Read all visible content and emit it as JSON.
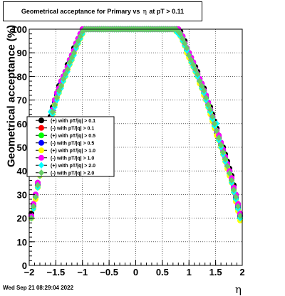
{
  "title": {
    "part1": "Geometrical acceptance for Primary vs",
    "eta": "η",
    "part2": "at pT > 0.11"
  },
  "timestamp": "Wed Sep 21 08:29:04 2022",
  "chart_data": {
    "type": "scatter",
    "title": "Geometrical acceptance for Primary vs η at pT > 0.11",
    "xlabel": "η",
    "ylabel": "Geometrical acceptance (%)",
    "xlim": [
      -2,
      2
    ],
    "ylim": [
      0,
      100
    ],
    "grid": true,
    "legend_position": "left-middle",
    "x_ticks": [
      {
        "v": -2,
        "label": "−2"
      },
      {
        "v": -1.5,
        "label": "−1.5"
      },
      {
        "v": -1,
        "label": "−1"
      },
      {
        "v": -0.5,
        "label": "−0.5"
      },
      {
        "v": 0,
        "label": "0"
      },
      {
        "v": 0.5,
        "label": "0.5"
      },
      {
        "v": 1,
        "label": "1"
      },
      {
        "v": 1.5,
        "label": "1.5"
      },
      {
        "v": 2,
        "label": "2"
      }
    ],
    "y_ticks": [
      {
        "v": 0,
        "label": "0"
      },
      {
        "v": 10,
        "label": "10"
      },
      {
        "v": 20,
        "label": "20"
      },
      {
        "v": 30,
        "label": "30"
      },
      {
        "v": 40,
        "label": "40"
      },
      {
        "v": 50,
        "label": "50"
      },
      {
        "v": 60,
        "label": "60"
      },
      {
        "v": 70,
        "label": "70"
      },
      {
        "v": 80,
        "label": "80"
      },
      {
        "v": 90,
        "label": "90"
      },
      {
        "v": 100,
        "label": "100"
      }
    ],
    "x": [
      -1.96,
      -1.92,
      -1.88,
      -1.84,
      -1.8,
      -1.76,
      -1.72,
      -1.68,
      -1.64,
      -1.6,
      -1.56,
      -1.52,
      -1.48,
      -1.44,
      -1.4,
      -1.36,
      -1.32,
      -1.28,
      -1.24,
      -1.2,
      -1.16,
      -1.12,
      -1.08,
      -1.04,
      -1.0,
      -0.96,
      -0.92,
      -0.88,
      -0.84,
      -0.8,
      -0.76,
      -0.72,
      -0.68,
      -0.64,
      -0.6,
      -0.56,
      -0.52,
      -0.48,
      -0.44,
      -0.4,
      -0.36,
      -0.32,
      -0.28,
      -0.24,
      -0.2,
      -0.16,
      -0.12,
      -0.08,
      -0.04,
      0.0,
      0.04,
      0.08,
      0.12,
      0.16,
      0.2,
      0.24,
      0.28,
      0.32,
      0.36,
      0.4,
      0.44,
      0.48,
      0.52,
      0.56,
      0.6,
      0.64,
      0.68,
      0.72,
      0.76,
      0.8,
      0.84,
      0.88,
      0.92,
      0.96,
      1.0,
      1.04,
      1.08,
      1.12,
      1.16,
      1.2,
      1.24,
      1.28,
      1.32,
      1.36,
      1.4,
      1.44,
      1.48,
      1.52,
      1.56,
      1.6,
      1.64,
      1.68,
      1.72,
      1.76,
      1.8,
      1.84,
      1.88,
      1.92,
      1.96
    ],
    "series": [
      {
        "name": "(+) with pT/|q| > 0.1",
        "color": "#000000",
        "marker": "circle",
        "values": [
          22,
          26,
          30,
          35,
          40,
          44,
          48,
          53,
          58,
          63,
          67,
          70,
          73,
          76,
          78,
          80,
          82,
          85,
          87,
          89,
          92,
          94,
          96,
          98,
          100,
          100,
          100,
          100,
          100,
          100,
          100,
          100,
          100,
          100,
          100,
          100,
          100,
          100,
          100,
          100,
          100,
          100,
          100,
          100,
          100,
          100,
          100,
          100,
          100,
          100,
          100,
          100,
          100,
          100,
          100,
          100,
          100,
          100,
          100,
          100,
          100,
          100,
          100,
          100,
          100,
          100,
          100,
          100,
          100,
          100,
          99,
          97,
          95,
          92,
          90,
          88,
          86,
          84,
          82,
          79,
          77,
          75,
          72,
          69,
          67,
          64,
          61,
          58,
          55,
          52,
          50,
          47,
          44,
          41,
          38,
          34,
          30,
          26,
          22
        ]
      },
      {
        "name": "(-) with pT/|q| > 0.1",
        "color": "#ff0000",
        "marker": "circle",
        "values": [
          21,
          25,
          29,
          34,
          39,
          43,
          47,
          52,
          57,
          62,
          66,
          69,
          72,
          75,
          77,
          79,
          81,
          84,
          86,
          88,
          91,
          93,
          95,
          97,
          99,
          100,
          100,
          100,
          100,
          100,
          100,
          100,
          100,
          100,
          100,
          100,
          100,
          100,
          100,
          100,
          100,
          100,
          100,
          100,
          100,
          100,
          100,
          100,
          100,
          100,
          100,
          100,
          100,
          100,
          100,
          100,
          100,
          100,
          100,
          100,
          100,
          100,
          100,
          100,
          100,
          100,
          100,
          100,
          100,
          99,
          98,
          96,
          94,
          91,
          89,
          87,
          85,
          83,
          81,
          78,
          76,
          74,
          71,
          68,
          66,
          63,
          60,
          57,
          54,
          51,
          49,
          46,
          43,
          40,
          37,
          33,
          29,
          25,
          21
        ]
      },
      {
        "name": "(+) with pT/|q| > 0.5",
        "color": "#00ff00",
        "marker": "circle",
        "values": [
          20,
          25,
          29,
          33,
          38,
          43,
          47,
          51,
          56,
          61,
          65,
          68,
          71,
          74,
          76,
          79,
          81,
          83,
          86,
          88,
          90,
          92,
          95,
          97,
          99,
          100,
          100,
          100,
          100,
          100,
          100,
          100,
          100,
          100,
          100,
          100,
          100,
          100,
          100,
          100,
          100,
          100,
          100,
          100,
          100,
          100,
          100,
          100,
          100,
          100,
          100,
          100,
          100,
          100,
          100,
          100,
          100,
          100,
          100,
          100,
          100,
          100,
          100,
          100,
          100,
          100,
          100,
          100,
          100,
          99,
          98,
          96,
          93,
          91,
          89,
          87,
          85,
          83,
          80,
          78,
          75,
          73,
          70,
          68,
          65,
          62,
          59,
          56,
          53,
          51,
          48,
          45,
          42,
          39,
          36,
          32,
          28,
          24,
          20
        ]
      },
      {
        "name": "(-) with pT/|q| > 0.5",
        "color": "#0000ff",
        "marker": "circle",
        "values": [
          21,
          25,
          30,
          34,
          39,
          43,
          48,
          52,
          57,
          62,
          66,
          69,
          72,
          75,
          77,
          80,
          82,
          84,
          86,
          89,
          91,
          93,
          96,
          98,
          99,
          100,
          100,
          100,
          100,
          100,
          100,
          100,
          100,
          100,
          100,
          100,
          100,
          100,
          100,
          100,
          100,
          100,
          100,
          100,
          100,
          100,
          100,
          100,
          100,
          100,
          100,
          100,
          100,
          100,
          100,
          100,
          100,
          100,
          100,
          100,
          100,
          100,
          100,
          100,
          100,
          100,
          100,
          100,
          100,
          99,
          98,
          96,
          94,
          92,
          89,
          87,
          85,
          83,
          81,
          79,
          76,
          74,
          71,
          69,
          66,
          63,
          60,
          57,
          54,
          52,
          49,
          46,
          43,
          40,
          37,
          33,
          29,
          25,
          21
        ]
      },
      {
        "name": "(+) with pT/|q| > 1.0",
        "color": "#ffff00",
        "marker": "circle",
        "values": [
          20,
          24,
          28,
          33,
          38,
          42,
          46,
          51,
          56,
          60,
          64,
          68,
          71,
          73,
          76,
          78,
          80,
          83,
          85,
          87,
          90,
          92,
          94,
          96,
          98,
          100,
          100,
          100,
          100,
          100,
          100,
          100,
          100,
          100,
          100,
          100,
          100,
          100,
          100,
          100,
          100,
          100,
          100,
          100,
          100,
          100,
          100,
          100,
          100,
          100,
          100,
          100,
          100,
          100,
          100,
          100,
          100,
          100,
          100,
          100,
          100,
          100,
          100,
          100,
          100,
          100,
          100,
          100,
          99,
          99,
          97,
          95,
          93,
          90,
          88,
          86,
          84,
          82,
          80,
          77,
          75,
          72,
          70,
          67,
          64,
          61,
          58,
          55,
          53,
          50,
          47,
          44,
          41,
          38,
          35,
          31,
          27,
          23,
          19
        ]
      },
      {
        "name": "(-) with pT/|q| > 1.0",
        "color": "#ff00ff",
        "marker": "circle",
        "values": [
          21,
          26,
          30,
          35,
          39,
          44,
          48,
          52,
          57,
          62,
          66,
          70,
          73,
          75,
          78,
          80,
          82,
          84,
          87,
          89,
          91,
          94,
          96,
          98,
          100,
          100,
          100,
          100,
          100,
          100,
          100,
          100,
          100,
          100,
          100,
          100,
          100,
          100,
          100,
          100,
          100,
          100,
          100,
          100,
          100,
          100,
          100,
          100,
          100,
          100,
          100,
          100,
          100,
          100,
          100,
          100,
          100,
          100,
          100,
          100,
          100,
          100,
          100,
          100,
          100,
          100,
          100,
          100,
          100,
          100,
          98,
          97,
          94,
          92,
          90,
          88,
          86,
          83,
          81,
          79,
          77,
          74,
          72,
          69,
          66,
          63,
          60,
          57,
          55,
          52,
          49,
          46,
          43,
          40,
          37,
          33,
          30,
          26,
          22
        ]
      },
      {
        "name": "(+) with pT/|q| > 2.0",
        "color": "#00ffff",
        "marker": "diamond",
        "values": [
          20,
          24,
          29,
          33,
          38,
          42,
          47,
          51,
          56,
          65,
          64,
          67,
          70,
          73,
          75,
          78,
          80,
          82,
          85,
          87,
          89,
          92,
          94,
          96,
          98,
          100,
          100,
          100,
          100,
          100,
          100,
          100,
          100,
          100,
          100,
          100,
          100,
          100,
          100,
          100,
          100,
          100,
          100,
          100,
          100,
          100,
          100,
          100,
          100,
          100,
          100,
          100,
          100,
          100,
          100,
          100,
          100,
          100,
          100,
          100,
          100,
          100,
          100,
          100,
          100,
          100,
          100,
          100,
          99,
          98,
          97,
          95,
          93,
          91,
          89,
          86,
          84,
          82,
          80,
          78,
          75,
          73,
          70,
          67,
          65,
          62,
          59,
          60,
          53,
          50,
          47,
          44,
          42,
          39,
          35,
          31,
          28,
          24,
          20
        ]
      },
      {
        "name": "(-) with pT/|q| > 2.0",
        "color": "#66cc66",
        "marker": "diamond",
        "values": [
          20,
          25,
          29,
          34,
          38,
          43,
          47,
          52,
          57,
          61,
          65,
          68,
          71,
          74,
          76,
          79,
          81,
          83,
          86,
          88,
          90,
          93,
          95,
          97,
          99,
          100,
          100,
          100,
          100,
          100,
          100,
          100,
          100,
          100,
          100,
          100,
          100,
          100,
          100,
          100,
          100,
          100,
          100,
          100,
          100,
          100,
          100,
          100,
          100,
          100,
          100,
          100,
          100,
          100,
          100,
          100,
          100,
          100,
          100,
          100,
          100,
          100,
          100,
          100,
          100,
          100,
          100,
          100,
          100,
          99,
          98,
          96,
          94,
          92,
          89,
          87,
          85,
          83,
          81,
          78,
          76,
          74,
          71,
          68,
          66,
          63,
          60,
          57,
          54,
          51,
          48,
          45,
          42,
          39,
          36,
          32,
          29,
          25,
          21
        ]
      }
    ]
  }
}
